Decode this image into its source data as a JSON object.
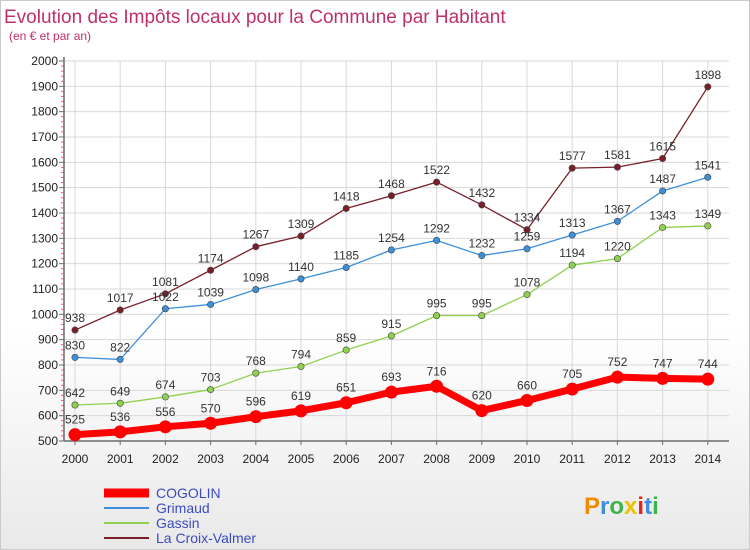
{
  "title": "Evolution des Impôts locaux pour la Commune par Habitant",
  "subtitle": "(en € et par an)",
  "logo": {
    "letters": [
      "P",
      "r",
      "o",
      "x",
      "i",
      "t",
      "i"
    ],
    "colors": [
      "#f08c00",
      "#3d8fd9",
      "#3cb44b",
      "#f0c000",
      "#e2231a",
      "#3d8fd9",
      "#3cb44b"
    ]
  },
  "colors": {
    "axis": "#6b6b6b",
    "tick_marks": "#ff5a8a",
    "grid": "#d8d8d8",
    "title": "#c0306a",
    "legend_text": "#3b4cc0"
  },
  "chart_data": {
    "type": "line",
    "title": "Evolution des Impôts locaux pour la Commune par Habitant",
    "subtitle": "(en € et par an)",
    "x": [
      "2000",
      "2001",
      "2002",
      "2003",
      "2004",
      "2005",
      "2006",
      "2007",
      "2008",
      "2009",
      "2010",
      "2011",
      "2012",
      "2013",
      "2014"
    ],
    "ylim": [
      500,
      2000
    ],
    "yticks": [
      500,
      600,
      700,
      800,
      900,
      1000,
      1100,
      1200,
      1300,
      1400,
      1500,
      1600,
      1700,
      1800,
      1900,
      2000
    ],
    "grid": true,
    "legend": "bottom-left",
    "series": [
      {
        "name": "COGOLIN",
        "color": "#ff0000",
        "values": [
          525,
          536,
          556,
          570,
          596,
          619,
          651,
          693,
          716,
          620,
          660,
          705,
          752,
          747,
          744
        ]
      },
      {
        "name": "Grimaud",
        "color": "#3d8fd9",
        "values": [
          830,
          822,
          1022,
          1039,
          1098,
          1140,
          1185,
          1254,
          1292,
          1232,
          1259,
          1313,
          1367,
          1487,
          1541
        ]
      },
      {
        "name": "Gassin",
        "color": "#8fd14f",
        "values": [
          642,
          649,
          674,
          703,
          768,
          794,
          859,
          915,
          995,
          995,
          1078,
          1194,
          1220,
          1343,
          1349
        ]
      },
      {
        "name": "La Croix-Valmer",
        "color": "#7a1f2a",
        "values": [
          938,
          1017,
          1081,
          1174,
          1267,
          1309,
          1418,
          1468,
          1522,
          1432,
          1334,
          1577,
          1581,
          1615,
          1898
        ]
      }
    ]
  }
}
